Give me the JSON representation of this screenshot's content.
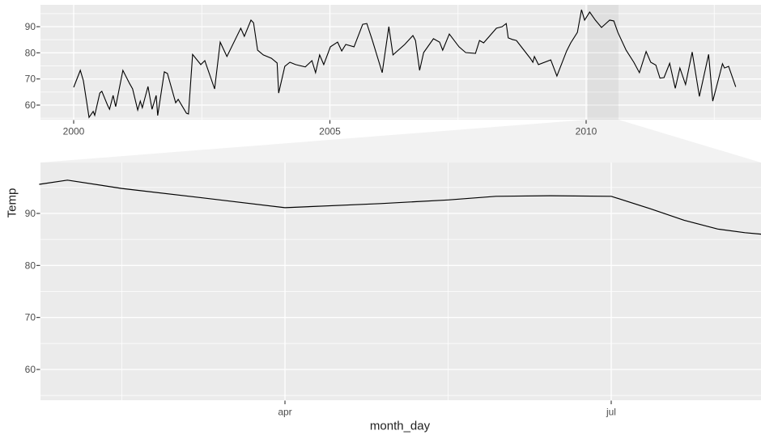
{
  "figure": {
    "kind": "ggplot-facet-zoom",
    "description": "Time-series of Temp with a zoom facet: overview 2000-2013 on top, zoomed window (2010, late Jan to mid Aug) below"
  },
  "colors": {
    "background": "#ffffff",
    "panel_bg": "#ebebeb",
    "grid_major": "#ffffff",
    "grid_minor": "#ffffff",
    "line": "#000000",
    "tick_mark": "#333333",
    "tick_text": "#4d4d4d",
    "axis_title_text": "#1f1f1f",
    "zoom_overlay": "rgba(0,0,0,0.05)"
  },
  "y_axis": {
    "label": "Temp"
  },
  "x_axis": {
    "label": "month_day"
  },
  "chart_data": [
    {
      "id": "overview",
      "type": "line",
      "title": "",
      "xlabel": "",
      "ylabel": "Temp",
      "x_tick_labels": [
        "2000",
        "2005",
        "2010"
      ],
      "x_tick_values": [
        2000,
        2005,
        2010
      ],
      "x_minor_values": [
        2002.5,
        2007.5,
        2012.5
      ],
      "y_tick_labels": [
        "90",
        "80",
        "70",
        "60"
      ],
      "y_tick_values": [
        90,
        80,
        70,
        60
      ],
      "y_minor_values": [
        95,
        85,
        75,
        65,
        55
      ],
      "xlim": [
        1999.35,
        2013.41
      ],
      "ylim": [
        54.4,
        98.3
      ],
      "grid": true,
      "legend": "none",
      "zoom_window": {
        "x_from": 2010.03,
        "x_to": 2010.63
      },
      "points": [
        [
          2000.0,
          66.8
        ],
        [
          2000.13,
          73.3
        ],
        [
          2000.19,
          69.3
        ],
        [
          2000.3,
          55.3
        ],
        [
          2000.38,
          57.6
        ],
        [
          2000.41,
          56.1
        ],
        [
          2000.51,
          64.6
        ],
        [
          2000.55,
          65.3
        ],
        [
          2000.66,
          60.0
        ],
        [
          2000.7,
          58.4
        ],
        [
          2000.77,
          63.7
        ],
        [
          2000.82,
          59.4
        ],
        [
          2000.96,
          73.3
        ],
        [
          2001.09,
          68.3
        ],
        [
          2001.15,
          66.2
        ],
        [
          2001.25,
          58.1
        ],
        [
          2001.3,
          61.5
        ],
        [
          2001.34,
          59.0
        ],
        [
          2001.45,
          67.1
        ],
        [
          2001.53,
          58.4
        ],
        [
          2001.61,
          63.7
        ],
        [
          2001.64,
          56.0
        ],
        [
          2001.77,
          72.7
        ],
        [
          2001.83,
          72.1
        ],
        [
          2001.99,
          60.9
        ],
        [
          2002.04,
          62.2
        ],
        [
          2002.2,
          56.9
        ],
        [
          2002.24,
          56.6
        ],
        [
          2002.32,
          79.4
        ],
        [
          2002.48,
          75.5
        ],
        [
          2002.56,
          77.0
        ],
        [
          2002.75,
          66.2
        ],
        [
          2002.86,
          84.1
        ],
        [
          2002.99,
          78.6
        ],
        [
          2003.26,
          89.4
        ],
        [
          2003.33,
          86.3
        ],
        [
          2003.46,
          92.5
        ],
        [
          2003.51,
          91.5
        ],
        [
          2003.59,
          81.0
        ],
        [
          2003.7,
          79.2
        ],
        [
          2003.86,
          77.9
        ],
        [
          2003.97,
          76.1
        ],
        [
          2004.0,
          64.6
        ],
        [
          2004.12,
          74.8
        ],
        [
          2004.22,
          76.4
        ],
        [
          2004.33,
          75.5
        ],
        [
          2004.52,
          74.6
        ],
        [
          2004.65,
          77.0
        ],
        [
          2004.72,
          72.4
        ],
        [
          2004.8,
          79.2
        ],
        [
          2004.88,
          75.5
        ],
        [
          2005.01,
          82.3
        ],
        [
          2005.15,
          84.1
        ],
        [
          2005.23,
          80.7
        ],
        [
          2005.31,
          83.2
        ],
        [
          2005.47,
          82.3
        ],
        [
          2005.64,
          90.9
        ],
        [
          2005.72,
          91.2
        ],
        [
          2005.83,
          84.7
        ],
        [
          2006.02,
          72.4
        ],
        [
          2006.15,
          90.0
        ],
        [
          2006.23,
          79.2
        ],
        [
          2006.46,
          83.2
        ],
        [
          2006.62,
          86.6
        ],
        [
          2006.67,
          84.7
        ],
        [
          2006.75,
          73.3
        ],
        [
          2006.83,
          80.1
        ],
        [
          2007.02,
          85.4
        ],
        [
          2007.14,
          84.1
        ],
        [
          2007.2,
          81.0
        ],
        [
          2007.33,
          87.2
        ],
        [
          2007.52,
          82.3
        ],
        [
          2007.65,
          80.1
        ],
        [
          2007.84,
          79.8
        ],
        [
          2007.92,
          84.7
        ],
        [
          2008.0,
          83.8
        ],
        [
          2008.25,
          89.4
        ],
        [
          2008.36,
          90.0
        ],
        [
          2008.44,
          91.2
        ],
        [
          2008.48,
          85.7
        ],
        [
          2008.56,
          85.1
        ],
        [
          2008.64,
          84.7
        ],
        [
          2008.91,
          77.9
        ],
        [
          2008.96,
          76.4
        ],
        [
          2008.99,
          78.6
        ],
        [
          2009.07,
          75.5
        ],
        [
          2009.31,
          77.3
        ],
        [
          2009.43,
          71.1
        ],
        [
          2009.62,
          80.7
        ],
        [
          2009.7,
          83.8
        ],
        [
          2009.83,
          87.8
        ],
        [
          2009.91,
          96.5
        ],
        [
          2009.97,
          92.5
        ],
        [
          2010.07,
          95.6
        ],
        [
          2010.18,
          92.5
        ],
        [
          2010.3,
          89.7
        ],
        [
          2010.46,
          92.5
        ],
        [
          2010.54,
          92.2
        ],
        [
          2010.62,
          87.8
        ],
        [
          2010.78,
          81.0
        ],
        [
          2010.93,
          76.4
        ],
        [
          2011.04,
          72.4
        ],
        [
          2011.17,
          80.5
        ],
        [
          2011.26,
          76.4
        ],
        [
          2011.36,
          75.3
        ],
        [
          2011.44,
          70.3
        ],
        [
          2011.52,
          70.5
        ],
        [
          2011.63,
          76.0
        ],
        [
          2011.74,
          66.4
        ],
        [
          2011.83,
          74.2
        ],
        [
          2011.94,
          67.9
        ],
        [
          2012.07,
          80.3
        ],
        [
          2012.21,
          63.3
        ],
        [
          2012.39,
          79.4
        ],
        [
          2012.47,
          61.5
        ],
        [
          2012.66,
          75.8
        ],
        [
          2012.7,
          74.2
        ],
        [
          2012.78,
          74.8
        ],
        [
          2012.92,
          67.0
        ]
      ]
    },
    {
      "id": "zoom_2010",
      "type": "line",
      "title": "",
      "xlabel": "month_day",
      "ylabel": "Temp",
      "x_unit": "month of 2010 (decimal)",
      "x_tick_labels": [
        "apr",
        "jul"
      ],
      "x_tick_values": [
        4,
        7
      ],
      "x_minor_values": [
        2.5,
        5.5,
        8.5
      ],
      "y_tick_labels": [
        "90",
        "80",
        "70",
        "60"
      ],
      "y_tick_values": [
        90,
        80,
        70,
        60
      ],
      "y_minor_values": [
        95,
        85,
        75,
        65,
        55
      ],
      "xlim": [
        1.74,
        8.38
      ],
      "ylim": [
        54.1,
        99.8
      ],
      "grid": true,
      "legend": "none",
      "points": [
        [
          1.74,
          95.6
        ],
        [
          2.0,
          96.4
        ],
        [
          2.5,
          94.8
        ],
        [
          3.24,
          93.0
        ],
        [
          4.0,
          91.1
        ],
        [
          4.88,
          91.9
        ],
        [
          5.5,
          92.6
        ],
        [
          5.94,
          93.3
        ],
        [
          6.44,
          93.4
        ],
        [
          7.0,
          93.3
        ],
        [
          7.36,
          90.9
        ],
        [
          7.67,
          88.7
        ],
        [
          7.98,
          87.0
        ],
        [
          8.23,
          86.3
        ],
        [
          8.38,
          86.0
        ]
      ]
    }
  ]
}
